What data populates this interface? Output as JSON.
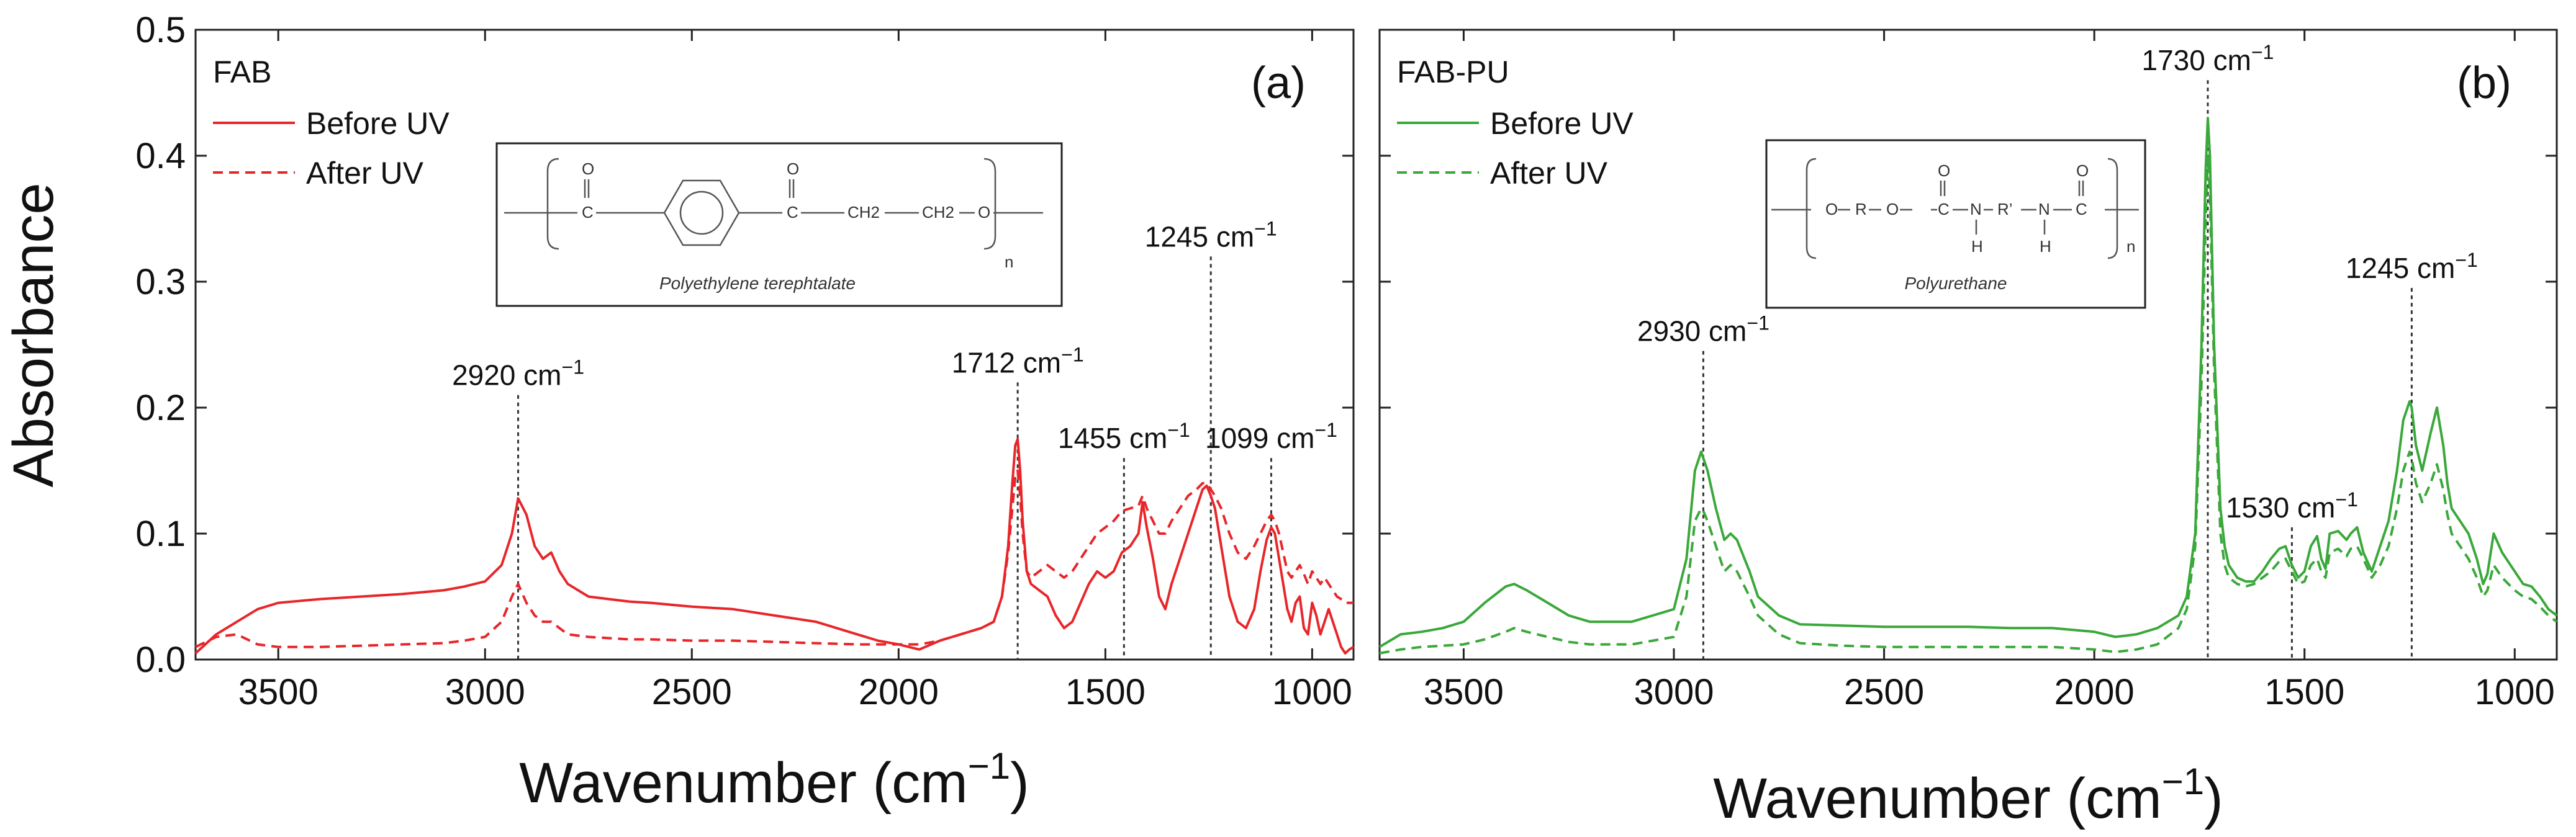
{
  "figure": {
    "ylabel": "Absorbance"
  },
  "chart_data": [
    {
      "type": "line",
      "panel_letter": "(a)",
      "sample_label": "FAB",
      "xlabel": "Wavenumber",
      "xlabel_unit": "(cm",
      "xlabel_sup": "−1",
      "xlabel_close": ")",
      "xlim": [
        3700,
        900
      ],
      "ylim": [
        0,
        0.5
      ],
      "x_ticks": [
        3500,
        3000,
        2500,
        2000,
        1500,
        1000
      ],
      "y_ticks": [
        0.0,
        0.1,
        0.2,
        0.3,
        0.4,
        0.5
      ],
      "x_tick_labels": [
        "3500",
        "3000",
        "2500",
        "2000",
        "1500",
        "1000"
      ],
      "y_tick_labels": [
        "0.0",
        "0.1",
        "0.2",
        "0.3",
        "0.4",
        "0.5"
      ],
      "color": "#e8262a",
      "series": [
        {
          "name": "Before UV",
          "dash": "solid",
          "x": [
            3700,
            3650,
            3600,
            3550,
            3500,
            3400,
            3300,
            3200,
            3100,
            3050,
            3000,
            2960,
            2935,
            2920,
            2900,
            2880,
            2860,
            2840,
            2820,
            2800,
            2750,
            2700,
            2650,
            2600,
            2500,
            2400,
            2300,
            2200,
            2100,
            2050,
            2000,
            1950,
            1900,
            1850,
            1800,
            1770,
            1750,
            1735,
            1725,
            1718,
            1712,
            1706,
            1700,
            1690,
            1680,
            1660,
            1640,
            1620,
            1600,
            1580,
            1560,
            1540,
            1520,
            1500,
            1480,
            1460,
            1440,
            1420,
            1410,
            1400,
            1385,
            1370,
            1355,
            1340,
            1320,
            1300,
            1280,
            1265,
            1255,
            1245,
            1235,
            1220,
            1200,
            1180,
            1160,
            1140,
            1125,
            1110,
            1099,
            1090,
            1080,
            1070,
            1060,
            1050,
            1040,
            1030,
            1020,
            1010,
            1000,
            990,
            980,
            970,
            960,
            950,
            940,
            930,
            920,
            910,
            900
          ],
          "y": [
            0.005,
            0.02,
            0.03,
            0.04,
            0.045,
            0.048,
            0.05,
            0.052,
            0.055,
            0.058,
            0.062,
            0.075,
            0.1,
            0.128,
            0.115,
            0.09,
            0.08,
            0.085,
            0.07,
            0.06,
            0.05,
            0.048,
            0.046,
            0.045,
            0.042,
            0.04,
            0.035,
            0.03,
            0.02,
            0.015,
            0.012,
            0.008,
            0.015,
            0.02,
            0.025,
            0.03,
            0.05,
            0.09,
            0.14,
            0.17,
            0.175,
            0.15,
            0.11,
            0.07,
            0.06,
            0.055,
            0.05,
            0.035,
            0.025,
            0.03,
            0.045,
            0.06,
            0.07,
            0.065,
            0.07,
            0.085,
            0.09,
            0.1,
            0.125,
            0.105,
            0.08,
            0.05,
            0.04,
            0.06,
            0.08,
            0.1,
            0.12,
            0.135,
            0.138,
            0.13,
            0.12,
            0.09,
            0.05,
            0.03,
            0.025,
            0.04,
            0.07,
            0.095,
            0.105,
            0.1,
            0.08,
            0.06,
            0.04,
            0.03,
            0.045,
            0.05,
            0.025,
            0.02,
            0.045,
            0.035,
            0.02,
            0.03,
            0.04,
            0.03,
            0.02,
            0.01,
            0.005,
            0.008,
            0.01
          ]
        },
        {
          "name": "After UV",
          "dash": "dashed",
          "x": [
            3700,
            3650,
            3600,
            3550,
            3500,
            3400,
            3300,
            3200,
            3100,
            3050,
            3000,
            2960,
            2935,
            2920,
            2900,
            2880,
            2860,
            2840,
            2820,
            2800,
            2750,
            2700,
            2650,
            2600,
            2500,
            2400,
            2300,
            2200,
            2100,
            2050,
            2000,
            1950,
            1900,
            1850,
            1800,
            1770,
            1750,
            1735,
            1725,
            1718,
            1712,
            1706,
            1700,
            1690,
            1680,
            1660,
            1640,
            1620,
            1600,
            1580,
            1560,
            1540,
            1520,
            1500,
            1480,
            1460,
            1440,
            1420,
            1410,
            1400,
            1385,
            1370,
            1355,
            1340,
            1320,
            1300,
            1280,
            1265,
            1255,
            1245,
            1235,
            1220,
            1200,
            1180,
            1160,
            1140,
            1125,
            1110,
            1099,
            1090,
            1080,
            1070,
            1060,
            1050,
            1040,
            1030,
            1020,
            1010,
            1000,
            990,
            980,
            970,
            960,
            950,
            940,
            930,
            920,
            910,
            900
          ],
          "y": [
            0.01,
            0.018,
            0.02,
            0.012,
            0.01,
            0.01,
            0.011,
            0.012,
            0.013,
            0.015,
            0.018,
            0.03,
            0.05,
            0.06,
            0.045,
            0.035,
            0.03,
            0.03,
            0.025,
            0.02,
            0.018,
            0.017,
            0.016,
            0.016,
            0.015,
            0.015,
            0.014,
            0.013,
            0.012,
            0.012,
            0.012,
            0.012,
            0.015,
            0.02,
            0.025,
            0.03,
            0.05,
            0.085,
            0.12,
            0.145,
            0.15,
            0.13,
            0.1,
            0.07,
            0.065,
            0.07,
            0.075,
            0.07,
            0.065,
            0.07,
            0.08,
            0.09,
            0.1,
            0.105,
            0.11,
            0.118,
            0.12,
            0.122,
            0.13,
            0.12,
            0.11,
            0.1,
            0.1,
            0.11,
            0.12,
            0.13,
            0.135,
            0.14,
            0.14,
            0.135,
            0.13,
            0.12,
            0.1,
            0.085,
            0.08,
            0.09,
            0.1,
            0.11,
            0.115,
            0.11,
            0.1,
            0.085,
            0.07,
            0.065,
            0.07,
            0.075,
            0.068,
            0.06,
            0.07,
            0.065,
            0.06,
            0.065,
            0.06,
            0.055,
            0.05,
            0.048,
            0.045,
            0.045,
            0.045
          ]
        }
      ],
      "annotations": [
        {
          "value": 2920,
          "text": "2920 cm",
          "sup": "−1",
          "top": 0.21
        },
        {
          "value": 1712,
          "text": "1712 cm",
          "sup": "−1",
          "top": 0.22
        },
        {
          "value": 1455,
          "text": "1455 cm",
          "sup": "−1",
          "top": 0.16
        },
        {
          "value": 1245,
          "text": "1245 cm",
          "sup": "−1",
          "top": 0.32
        },
        {
          "value": 1099,
          "text": "1099 cm",
          "sup": "−1",
          "top": 0.16
        }
      ],
      "structure": {
        "caption": "Polyethylene terephtalate",
        "atoms": [
          "O",
          "C",
          "O",
          "C",
          "CH2",
          "CH2",
          "O",
          "n"
        ]
      }
    },
    {
      "type": "line",
      "panel_letter": "(b)",
      "sample_label": "FAB-PU",
      "xlabel": "Wavenumber",
      "xlabel_unit": "(cm",
      "xlabel_sup": "−1",
      "xlabel_close": ")",
      "xlim": [
        3700,
        900
      ],
      "ylim": [
        0,
        0.5
      ],
      "x_ticks": [
        3500,
        3000,
        2500,
        2000,
        1500,
        1000
      ],
      "y_ticks": [
        0.0,
        0.1,
        0.2,
        0.3,
        0.4,
        0.5
      ],
      "x_tick_labels": [
        "3500",
        "3000",
        "2500",
        "2000",
        "1500",
        "1000"
      ],
      "color": "#3aa83a",
      "series": [
        {
          "name": "Before UV",
          "dash": "solid",
          "x": [
            3700,
            3650,
            3600,
            3550,
            3500,
            3450,
            3400,
            3380,
            3350,
            3300,
            3250,
            3200,
            3100,
            3000,
            2970,
            2950,
            2935,
            2930,
            2920,
            2900,
            2880,
            2865,
            2850,
            2820,
            2800,
            2750,
            2700,
            2600,
            2500,
            2400,
            2300,
            2200,
            2100,
            2000,
            1950,
            1900,
            1850,
            1800,
            1780,
            1760,
            1745,
            1735,
            1730,
            1725,
            1715,
            1700,
            1690,
            1680,
            1660,
            1640,
            1620,
            1600,
            1580,
            1560,
            1545,
            1530,
            1515,
            1500,
            1485,
            1470,
            1460,
            1450,
            1440,
            1420,
            1400,
            1390,
            1375,
            1360,
            1340,
            1320,
            1300,
            1280,
            1265,
            1250,
            1245,
            1235,
            1220,
            1200,
            1185,
            1170,
            1160,
            1150,
            1130,
            1110,
            1090,
            1075,
            1065,
            1050,
            1030,
            1000,
            980,
            960,
            940,
            920,
            900
          ],
          "y": [
            0.01,
            0.02,
            0.022,
            0.025,
            0.03,
            0.045,
            0.058,
            0.06,
            0.055,
            0.045,
            0.035,
            0.03,
            0.03,
            0.04,
            0.08,
            0.15,
            0.165,
            0.16,
            0.15,
            0.12,
            0.095,
            0.1,
            0.095,
            0.07,
            0.05,
            0.035,
            0.028,
            0.027,
            0.026,
            0.026,
            0.026,
            0.025,
            0.025,
            0.022,
            0.018,
            0.02,
            0.025,
            0.035,
            0.05,
            0.1,
            0.25,
            0.39,
            0.43,
            0.4,
            0.25,
            0.12,
            0.09,
            0.075,
            0.065,
            0.062,
            0.062,
            0.07,
            0.08,
            0.088,
            0.09,
            0.075,
            0.065,
            0.07,
            0.09,
            0.098,
            0.08,
            0.072,
            0.1,
            0.102,
            0.095,
            0.1,
            0.105,
            0.085,
            0.07,
            0.09,
            0.11,
            0.15,
            0.19,
            0.205,
            0.2,
            0.17,
            0.15,
            0.18,
            0.2,
            0.17,
            0.14,
            0.12,
            0.11,
            0.1,
            0.08,
            0.06,
            0.068,
            0.1,
            0.085,
            0.07,
            0.06,
            0.058,
            0.05,
            0.04,
            0.035
          ]
        },
        {
          "name": "After UV",
          "dash": "dashed",
          "x": [
            3700,
            3650,
            3600,
            3550,
            3500,
            3450,
            3400,
            3380,
            3350,
            3300,
            3250,
            3200,
            3100,
            3000,
            2970,
            2950,
            2935,
            2930,
            2920,
            2900,
            2880,
            2865,
            2850,
            2820,
            2800,
            2750,
            2700,
            2600,
            2500,
            2400,
            2300,
            2200,
            2100,
            2000,
            1950,
            1900,
            1850,
            1800,
            1780,
            1760,
            1745,
            1735,
            1730,
            1725,
            1715,
            1700,
            1690,
            1680,
            1660,
            1640,
            1620,
            1600,
            1580,
            1560,
            1545,
            1530,
            1515,
            1500,
            1485,
            1470,
            1460,
            1450,
            1440,
            1420,
            1400,
            1390,
            1375,
            1360,
            1340,
            1320,
            1300,
            1280,
            1265,
            1250,
            1245,
            1235,
            1220,
            1200,
            1185,
            1170,
            1160,
            1150,
            1130,
            1110,
            1090,
            1075,
            1065,
            1050,
            1030,
            1000,
            980,
            960,
            940,
            920,
            900
          ],
          "y": [
            0.005,
            0.008,
            0.01,
            0.011,
            0.012,
            0.016,
            0.022,
            0.025,
            0.022,
            0.018,
            0.014,
            0.012,
            0.012,
            0.018,
            0.05,
            0.11,
            0.12,
            0.118,
            0.11,
            0.09,
            0.07,
            0.075,
            0.07,
            0.05,
            0.035,
            0.02,
            0.013,
            0.011,
            0.01,
            0.01,
            0.01,
            0.01,
            0.01,
            0.008,
            0.006,
            0.008,
            0.012,
            0.025,
            0.04,
            0.09,
            0.22,
            0.35,
            0.4,
            0.37,
            0.23,
            0.1,
            0.075,
            0.065,
            0.06,
            0.058,
            0.06,
            0.065,
            0.07,
            0.078,
            0.08,
            0.07,
            0.06,
            0.062,
            0.075,
            0.08,
            0.07,
            0.065,
            0.085,
            0.088,
            0.082,
            0.088,
            0.09,
            0.08,
            0.065,
            0.075,
            0.09,
            0.12,
            0.15,
            0.165,
            0.16,
            0.14,
            0.125,
            0.14,
            0.155,
            0.135,
            0.115,
            0.1,
            0.09,
            0.08,
            0.065,
            0.05,
            0.055,
            0.075,
            0.065,
            0.055,
            0.05,
            0.048,
            0.042,
            0.035,
            0.03
          ]
        }
      ],
      "annotations": [
        {
          "value": 2930,
          "text": "2930 cm",
          "sup": "−1",
          "top": 0.245
        },
        {
          "value": 1730,
          "text": "1730 cm",
          "sup": "−1",
          "top": 0.46
        },
        {
          "value": 1530,
          "text": "1530 cm",
          "sup": "−1",
          "top": 0.105
        },
        {
          "value": 1245,
          "text": "1245 cm",
          "sup": "−1",
          "top": 0.295
        }
      ],
      "structure": {
        "caption": "Polyurethane",
        "atoms": [
          "O",
          "R",
          "O",
          "C",
          "N",
          "R’",
          "N",
          "C",
          "O",
          "O",
          "H",
          "H",
          "n"
        ]
      }
    }
  ]
}
